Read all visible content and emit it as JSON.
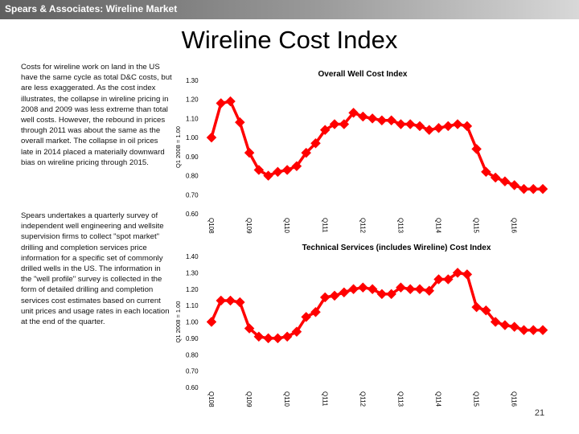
{
  "header": {
    "company": "Spears & Associates:  Wireline Market",
    "bar_color": "#7f7f7f"
  },
  "page": {
    "title": "Wireline Cost Index",
    "number": "21"
  },
  "text": {
    "paragraph1": "Costs for wireline work on land in the US have the same cycle as total D&C costs, but are less exaggerated. As the cost index illustrates, the collapse in wireline pricing in 2008 and 2009 was less extreme than total well costs.  However, the rebound in prices through 2011 was about the same as the overall market. The collapse in oil prices late in 2014 placed  a materially downward bias on wireline pricing through 2015.",
    "paragraph2": "Spears undertakes a quarterly survey of independent well engineering and wellsite supervision firms to collect \"spot market\" drilling and completion services price information for a specific set of commonly drilled wells in the US. The information in the \"well profile\" survey is collected in the form of detailed drilling and completion services cost estimates based on current unit prices and usage rates in each location at the end of the quarter."
  },
  "chart_data": [
    {
      "type": "line",
      "title": "Overall Well Cost Index",
      "ylabel": "Q1 2008 = 1.00",
      "xlabel": "",
      "ylim": [
        0.6,
        1.3
      ],
      "yticks": [
        "0.60",
        "0.70",
        "0.80",
        "0.90",
        "1.00",
        "1.10",
        "1.20",
        "1.30"
      ],
      "xticks": [
        "Q108",
        "Q109",
        "Q110",
        "Q111",
        "Q112",
        "Q113",
        "Q114",
        "Q115",
        "Q116"
      ],
      "color": "#ff0000",
      "marker": "diamond",
      "series": [
        {
          "name": "Overall Well Cost Index",
          "values": [
            1.0,
            1.18,
            1.19,
            1.08,
            0.92,
            0.83,
            0.8,
            0.82,
            0.83,
            0.85,
            0.92,
            0.97,
            1.04,
            1.07,
            1.07,
            1.13,
            1.11,
            1.1,
            1.09,
            1.09,
            1.07,
            1.07,
            1.06,
            1.04,
            1.05,
            1.06,
            1.07,
            1.06,
            0.94,
            0.82,
            0.79,
            0.77,
            0.75,
            0.73,
            0.73,
            0.73
          ]
        }
      ]
    },
    {
      "type": "line",
      "title": "Technical Services (includes Wireline) Cost Index",
      "ylabel": "Q1 2008 = 1.00",
      "xlabel": "",
      "ylim": [
        0.6,
        1.4
      ],
      "yticks": [
        "0.60",
        "0.70",
        "0.80",
        "0.90",
        "1.00",
        "1.10",
        "1.20",
        "1.30",
        "1.40"
      ],
      "xticks": [
        "Q108",
        "Q109",
        "Q110",
        "Q111",
        "Q112",
        "Q113",
        "Q114",
        "Q115",
        "Q116"
      ],
      "color": "#ff0000",
      "marker": "diamond",
      "series": [
        {
          "name": "Technical Services (includes Wireline) Cost Index",
          "values": [
            1.0,
            1.13,
            1.13,
            1.12,
            0.96,
            0.91,
            0.9,
            0.9,
            0.91,
            0.94,
            1.03,
            1.06,
            1.15,
            1.16,
            1.18,
            1.2,
            1.21,
            1.2,
            1.17,
            1.17,
            1.21,
            1.2,
            1.2,
            1.19,
            1.26,
            1.26,
            1.3,
            1.29,
            1.09,
            1.07,
            1.0,
            0.98,
            0.97,
            0.95,
            0.95,
            0.95
          ]
        }
      ]
    }
  ]
}
